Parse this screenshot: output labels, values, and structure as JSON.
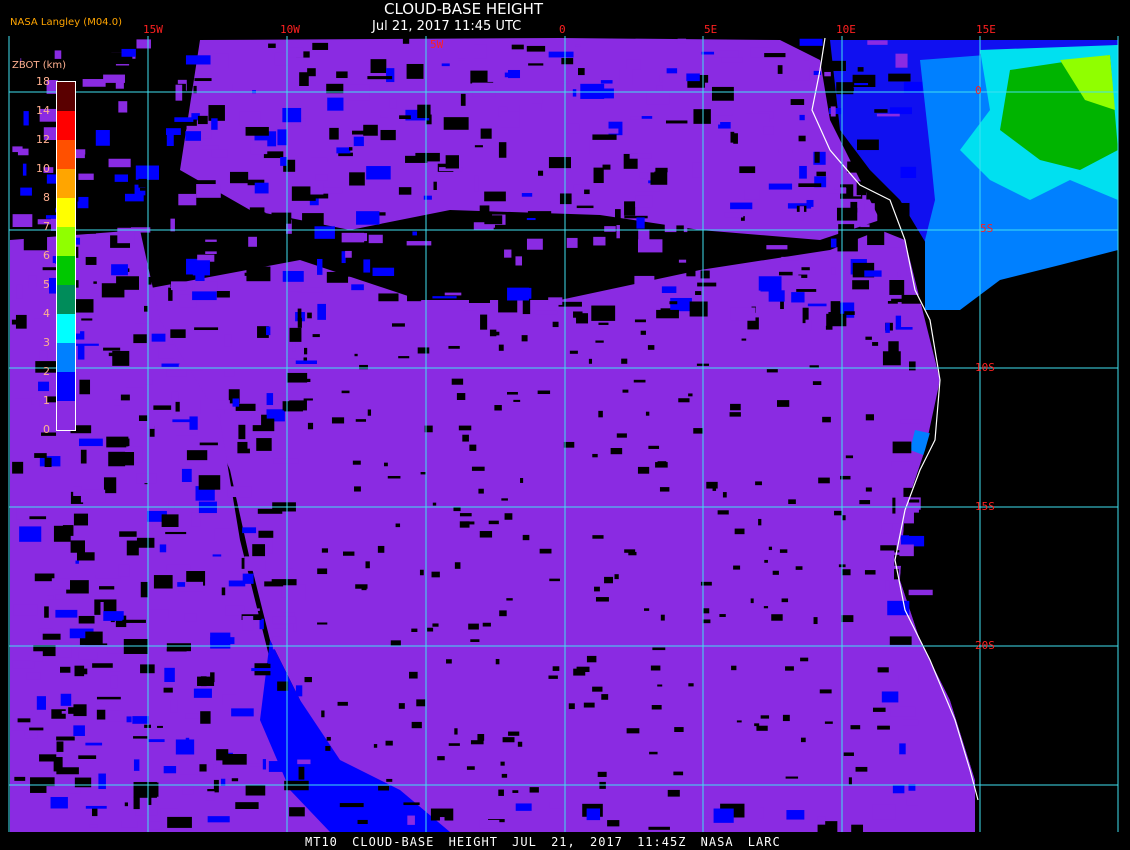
{
  "header": {
    "title": "CLOUD-BASE HEIGHT",
    "subtitle": "Jul 21, 2017 11:45 UTC",
    "credit": "NASA Langley (M04.0)"
  },
  "map": {
    "longitude_labels": [
      "15W",
      "10W",
      "5W",
      "0",
      "5E",
      "10E",
      "15E"
    ],
    "latitude_labels": [
      "0",
      "5S",
      "10S",
      "15S",
      "20S"
    ],
    "grid_color": "#40e0f0",
    "coastline_color": "#ffffff",
    "no_data_color": "#000000"
  },
  "legend": {
    "title": "ZBOT (km)",
    "tick_labels": [
      "18",
      "14",
      "12",
      "10",
      "8",
      "7",
      "6",
      "5",
      "4",
      "3",
      "2",
      "1",
      "0"
    ],
    "colors_top_to_bottom": [
      "#5a0000",
      "#ff0000",
      "#ff5000",
      "#ffa500",
      "#ffff00",
      "#90ff00",
      "#00c800",
      "#008c5a",
      "#00ffff",
      "#0080ff",
      "#0000ff",
      "#8a2be2"
    ]
  },
  "footer": {
    "text": "MT10  CLOUD-BASE HEIGHT   JUL 21, 2017 11:45Z   NASA LARC"
  }
}
